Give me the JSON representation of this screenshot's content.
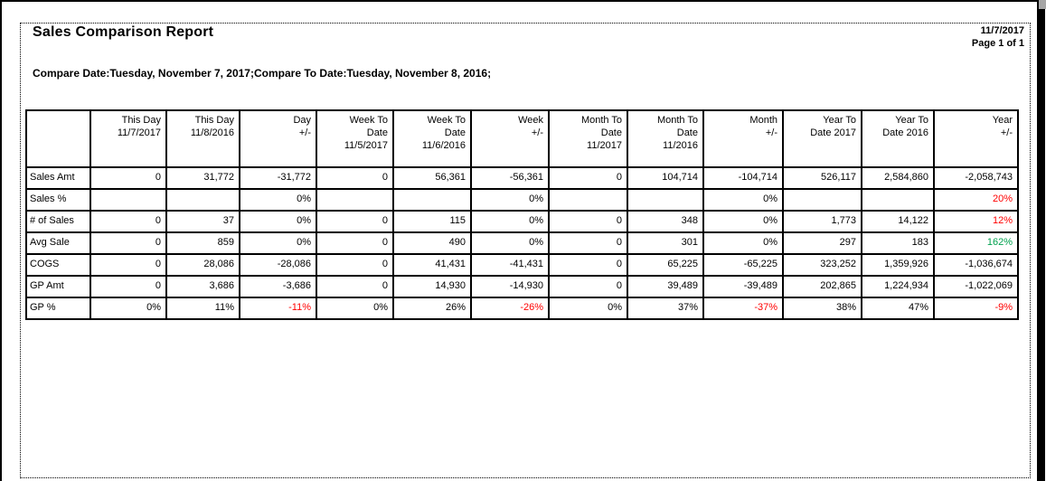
{
  "page": {
    "title": "Sales Comparison Report",
    "date": "11/7/2017",
    "page_number": "Page 1 of 1",
    "compare_line": "Compare Date:Tuesday, November 7, 2017;Compare To Date:Tuesday, November 8, 2016;"
  },
  "colors": {
    "negative": "#FF0000",
    "positive": "#00A14E"
  },
  "table": {
    "column_headers": [
      "",
      "This Day\n11/7/2017",
      "This Day\n11/8/2016",
      "Day\n+/-",
      "Week To\nDate\n11/5/2017",
      "Week To\nDate\n11/6/2016",
      "Week\n+/-",
      "Month To\nDate\n11/2017",
      "Month To\nDate\n11/2016",
      "Month\n+/-",
      "Year To\nDate 2017",
      "Year To\nDate 2016",
      "Year\n+/-"
    ],
    "rows": [
      {
        "label": "Sales Amt",
        "cells": [
          "0",
          "31,772",
          "-31,772",
          "0",
          "56,361",
          "-56,361",
          "0",
          "104,714",
          "-104,714",
          "526,117",
          "2,584,860",
          "-2,058,743"
        ]
      },
      {
        "label": "Sales %",
        "cells": [
          "",
          "",
          "0%",
          "",
          "",
          "0%",
          "",
          "",
          "0%",
          "",
          "",
          {
            "text": "20%",
            "color": "negative"
          }
        ]
      },
      {
        "label": "# of Sales",
        "cells": [
          "0",
          "37",
          "0%",
          "0",
          "115",
          "0%",
          "0",
          "348",
          "0%",
          "1,773",
          "14,122",
          {
            "text": "12%",
            "color": "negative"
          }
        ]
      },
      {
        "label": "Avg Sale",
        "cells": [
          "0",
          "859",
          "0%",
          "0",
          "490",
          "0%",
          "0",
          "301",
          "0%",
          "297",
          "183",
          {
            "text": "162%",
            "color": "positive"
          }
        ]
      },
      {
        "label": "COGS",
        "cells": [
          "0",
          "28,086",
          "-28,086",
          "0",
          "41,431",
          "-41,431",
          "0",
          "65,225",
          "-65,225",
          "323,252",
          "1,359,926",
          "-1,036,674"
        ]
      },
      {
        "label": "GP Amt",
        "cells": [
          "0",
          "3,686",
          "-3,686",
          "0",
          "14,930",
          "-14,930",
          "0",
          "39,489",
          "-39,489",
          "202,865",
          "1,224,934",
          "-1,022,069"
        ]
      },
      {
        "label": "GP %",
        "cells": [
          "0%",
          "11%",
          {
            "text": "-11%",
            "color": "negative"
          },
          "0%",
          "26%",
          {
            "text": "-26%",
            "color": "negative"
          },
          "0%",
          "37%",
          {
            "text": "-37%",
            "color": "negative"
          },
          "38%",
          "47%",
          {
            "text": "-9%",
            "color": "negative"
          }
        ]
      }
    ]
  }
}
